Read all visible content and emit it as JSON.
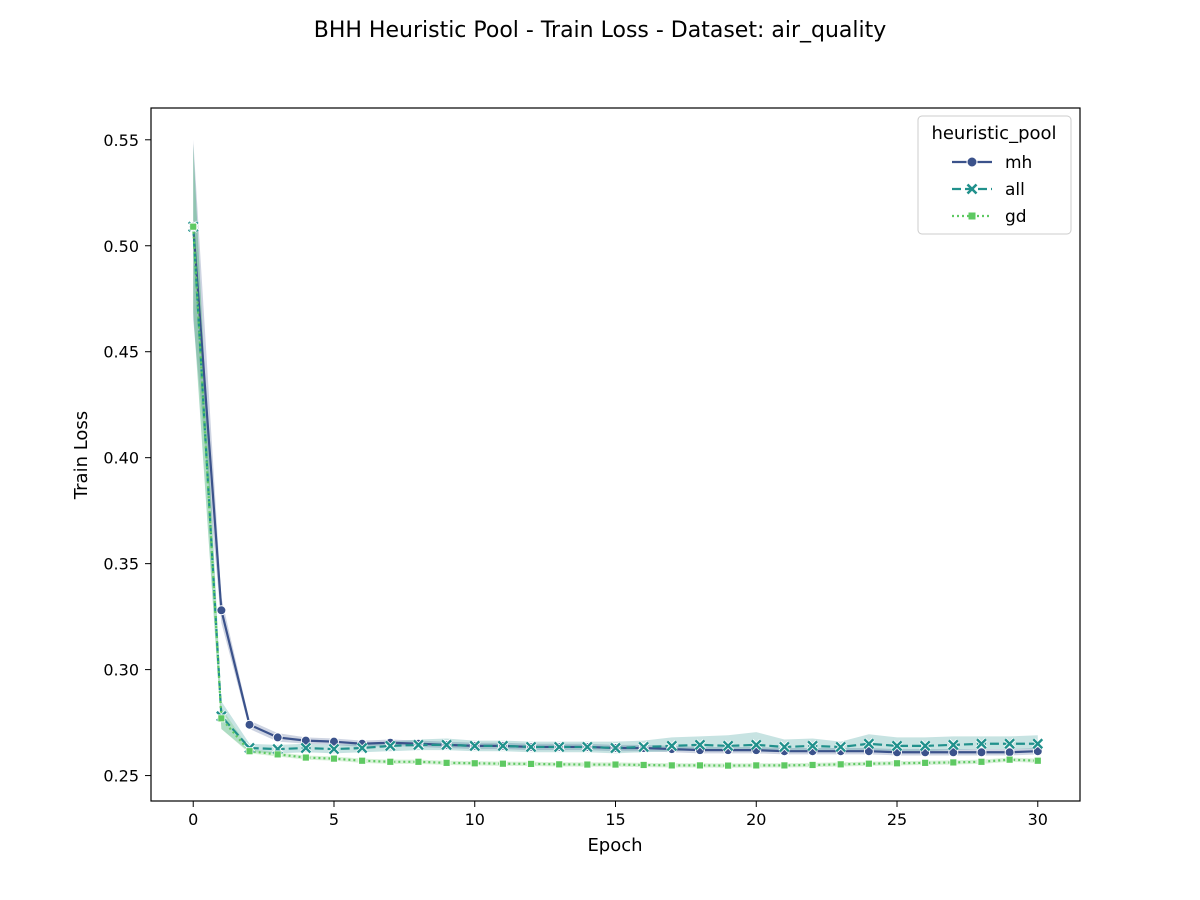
{
  "chart_data": {
    "type": "line",
    "title": "BHH Heuristic Pool - Train Loss - Dataset: air_quality",
    "xlabel": "Epoch",
    "ylabel": "Train Loss",
    "xlim": [
      -1.5,
      31.5
    ],
    "ylim": [
      0.238,
      0.565
    ],
    "xticks": [
      0,
      5,
      10,
      15,
      20,
      25,
      30
    ],
    "yticks": [
      0.25,
      0.3,
      0.35,
      0.4,
      0.45,
      0.5,
      0.55
    ],
    "ytick_labels": [
      "0.25",
      "0.30",
      "0.35",
      "0.40",
      "0.45",
      "0.50",
      "0.55"
    ],
    "grid": false,
    "legend": {
      "title": "heuristic_pool",
      "placement": "top-right"
    },
    "x": [
      0,
      1,
      2,
      3,
      4,
      5,
      6,
      7,
      8,
      9,
      10,
      11,
      12,
      13,
      14,
      15,
      16,
      17,
      18,
      19,
      20,
      21,
      22,
      23,
      24,
      25,
      26,
      27,
      28,
      29,
      30
    ],
    "series": [
      {
        "name": "mh",
        "color": "#3b528b",
        "dash": "solid",
        "marker": "circle",
        "values": [
          0.509,
          0.328,
          0.274,
          0.268,
          0.2665,
          0.266,
          0.265,
          0.2655,
          0.265,
          0.2645,
          0.264,
          0.264,
          0.2635,
          0.2635,
          0.2635,
          0.263,
          0.263,
          0.2625,
          0.262,
          0.262,
          0.262,
          0.2615,
          0.2615,
          0.2615,
          0.2615,
          0.261,
          0.261,
          0.261,
          0.261,
          0.261,
          0.2615
        ],
        "ci_low": [
          0.465,
          0.322,
          0.272,
          0.266,
          0.265,
          0.2645,
          0.2635,
          0.264,
          0.2635,
          0.263,
          0.2625,
          0.2625,
          0.262,
          0.262,
          0.262,
          0.2615,
          0.2615,
          0.261,
          0.2605,
          0.2605,
          0.2605,
          0.26,
          0.26,
          0.26,
          0.26,
          0.2595,
          0.2595,
          0.2595,
          0.2595,
          0.2595,
          0.26
        ],
        "ci_high": [
          0.55,
          0.334,
          0.276,
          0.27,
          0.268,
          0.2675,
          0.2665,
          0.267,
          0.2665,
          0.266,
          0.2655,
          0.2655,
          0.265,
          0.265,
          0.265,
          0.2645,
          0.2645,
          0.264,
          0.2635,
          0.2635,
          0.2635,
          0.263,
          0.263,
          0.263,
          0.263,
          0.2625,
          0.2625,
          0.2625,
          0.2625,
          0.2625,
          0.263
        ]
      },
      {
        "name": "all",
        "color": "#21918c",
        "dash": "dashed",
        "marker": "x",
        "values": [
          0.509,
          0.278,
          0.263,
          0.2625,
          0.263,
          0.2625,
          0.263,
          0.264,
          0.2645,
          0.2645,
          0.264,
          0.264,
          0.2635,
          0.2635,
          0.2635,
          0.263,
          0.2635,
          0.264,
          0.2645,
          0.264,
          0.2645,
          0.2635,
          0.264,
          0.2635,
          0.265,
          0.264,
          0.264,
          0.2645,
          0.265,
          0.265,
          0.265
        ],
        "ci_low": [
          0.468,
          0.272,
          0.261,
          0.2605,
          0.261,
          0.2605,
          0.261,
          0.2615,
          0.262,
          0.262,
          0.2615,
          0.2615,
          0.261,
          0.261,
          0.261,
          0.2605,
          0.261,
          0.2615,
          0.262,
          0.2615,
          0.2615,
          0.261,
          0.2615,
          0.261,
          0.262,
          0.2615,
          0.2615,
          0.262,
          0.2625,
          0.2625,
          0.2625
        ],
        "ci_high": [
          0.548,
          0.285,
          0.265,
          0.2645,
          0.265,
          0.2645,
          0.265,
          0.266,
          0.267,
          0.2675,
          0.2665,
          0.2665,
          0.266,
          0.266,
          0.266,
          0.266,
          0.2665,
          0.268,
          0.2685,
          0.269,
          0.2705,
          0.267,
          0.2675,
          0.266,
          0.2695,
          0.268,
          0.268,
          0.2685,
          0.2685,
          0.2685,
          0.269
        ]
      },
      {
        "name": "gd",
        "color": "#5ec962",
        "dash": "dotted",
        "marker": "square",
        "values": [
          0.509,
          0.277,
          0.2615,
          0.26,
          0.2585,
          0.258,
          0.257,
          0.2565,
          0.2565,
          0.256,
          0.2558,
          0.2556,
          0.2555,
          0.2553,
          0.2552,
          0.2552,
          0.255,
          0.2548,
          0.2548,
          0.2547,
          0.2548,
          0.2548,
          0.255,
          0.2553,
          0.2556,
          0.2558,
          0.256,
          0.2562,
          0.2565,
          0.2575,
          0.257
        ],
        "ci_low": [
          0.47,
          0.272,
          0.2605,
          0.259,
          0.2575,
          0.257,
          0.256,
          0.2555,
          0.2555,
          0.255,
          0.2548,
          0.2546,
          0.2545,
          0.2543,
          0.2542,
          0.2542,
          0.254,
          0.2538,
          0.2538,
          0.2537,
          0.2538,
          0.2538,
          0.254,
          0.2543,
          0.2546,
          0.2548,
          0.255,
          0.2552,
          0.2555,
          0.2565,
          0.256
        ],
        "ci_high": [
          0.548,
          0.282,
          0.2625,
          0.261,
          0.2595,
          0.259,
          0.258,
          0.2575,
          0.2575,
          0.257,
          0.2568,
          0.2566,
          0.2565,
          0.2563,
          0.2562,
          0.2562,
          0.256,
          0.2558,
          0.2558,
          0.2557,
          0.2558,
          0.2558,
          0.256,
          0.2563,
          0.2566,
          0.2568,
          0.257,
          0.2572,
          0.2575,
          0.2585,
          0.258
        ]
      }
    ]
  }
}
